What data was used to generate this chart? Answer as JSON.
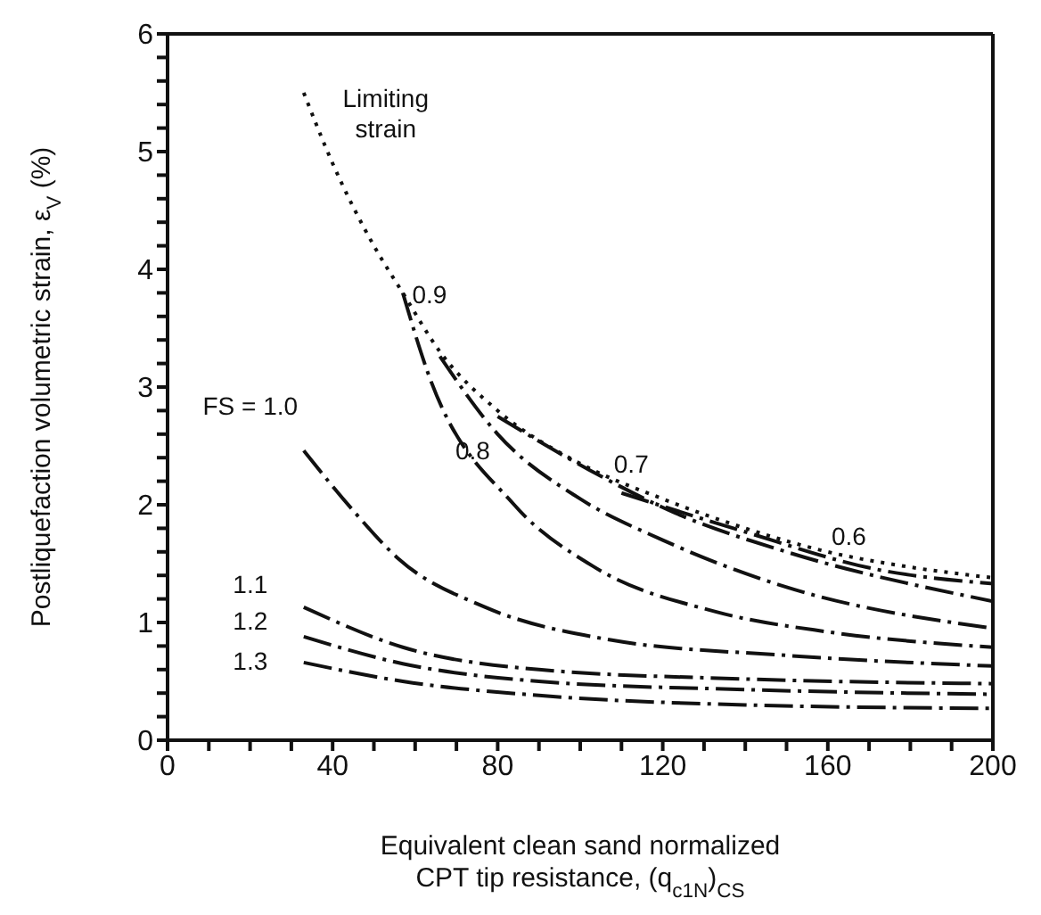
{
  "chart_data": {
    "type": "line",
    "xlabel": "Equivalent clean sand normalized\nCPT tip resistance,  (q$_{c1N}$)$_{CS}$",
    "ylabel": "Postliquefaction volumetric strain, ε$_{V}$ (%)",
    "xlim": [
      0,
      200
    ],
    "xticks": [
      0,
      {
        "value": 10,
        "label": null
      },
      {
        "value": 20,
        "label": null
      },
      {
        "value": 30,
        "label": null
      },
      40,
      {
        "value": 50,
        "label": null
      },
      {
        "value": 60,
        "label": null
      },
      {
        "value": 70,
        "label": null
      },
      80,
      {
        "value": 90,
        "label": null
      },
      {
        "value": 100,
        "label": null
      },
      {
        "value": 110,
        "label": null
      },
      120,
      {
        "value": 130,
        "label": null
      },
      {
        "value": 140,
        "label": null
      },
      {
        "value": 150,
        "label": null
      },
      160,
      {
        "value": 170,
        "label": null
      },
      {
        "value": 180,
        "label": null
      },
      {
        "value": 190,
        "label": null
      },
      200
    ],
    "ylim": [
      0,
      6
    ],
    "yticks": [
      0,
      {
        "value": 0.2,
        "label": null
      },
      {
        "value": 0.4,
        "label": null
      },
      {
        "value": 0.6,
        "label": null
      },
      {
        "value": 0.8,
        "label": null
      },
      1,
      {
        "value": 1.2,
        "label": null
      },
      {
        "value": 1.4,
        "label": null
      },
      {
        "value": 1.6,
        "label": null
      },
      {
        "value": 1.8,
        "label": null
      },
      2,
      {
        "value": 2.2,
        "label": null
      },
      {
        "value": 2.4,
        "label": null
      },
      {
        "value": 2.6,
        "label": null
      },
      {
        "value": 2.8,
        "label": null
      },
      3,
      {
        "value": 3.2,
        "label": null
      },
      {
        "value": 3.4,
        "label": null
      },
      {
        "value": 3.6,
        "label": null
      },
      {
        "value": 3.8,
        "label": null
      },
      4,
      {
        "value": 4.2,
        "label": null
      },
      {
        "value": 4.4,
        "label": null
      },
      {
        "value": 4.6,
        "label": null
      },
      {
        "value": 4.8,
        "label": null
      },
      5,
      {
        "value": 5.2,
        "label": null
      },
      {
        "value": 5.4,
        "label": null
      },
      {
        "value": 5.6,
        "label": null
      },
      {
        "value": 5.8,
        "label": null
      },
      6
    ],
    "grid": false,
    "legend": false,
    "marker": "none",
    "series": [
      {
        "name": "Limiting\nstrain",
        "color": "#111111",
        "line_style": "dotted",
        "x": [
          33,
          40,
          50,
          57,
          66,
          80,
          100,
          120,
          140,
          160,
          180,
          200
        ],
        "values": [
          5.5,
          4.9,
          4.2,
          3.8,
          3.3,
          2.8,
          2.35,
          2.05,
          1.8,
          1.6,
          1.47,
          1.38
        ]
      },
      {
        "name": "0.6",
        "color": "#111111",
        "line_style": "dashed",
        "x": [
          110,
          139,
          172,
          200
        ],
        "values": [
          2.1,
          1.78,
          1.45,
          1.33
        ]
      },
      {
        "name": "0.7",
        "color": "#111111",
        "line_style": "dashed",
        "x": [
          80,
          102,
          123,
          150,
          200
        ],
        "values": [
          2.75,
          2.3,
          1.93,
          1.6,
          1.18
        ]
      },
      {
        "name": "0.8",
        "color": "#111111",
        "line_style": "dashed",
        "x": [
          66,
          80,
          100,
          120,
          150,
          200
        ],
        "values": [
          3.26,
          2.6,
          2.05,
          1.7,
          1.3,
          0.95
        ]
      },
      {
        "name": "0.9",
        "color": "#111111",
        "line_style": "dashed",
        "x": [
          57,
          63,
          84,
          103,
          133,
          160,
          200
        ],
        "values": [
          3.8,
          3.13,
          2.0,
          1.48,
          1.09,
          0.92,
          0.79
        ]
      },
      {
        "name": "FS = 1.0",
        "color": "#111111",
        "line_style": "dashed",
        "x": [
          33,
          45,
          56,
          77,
          106,
          150,
          200
        ],
        "values": [
          2.46,
          1.95,
          1.54,
          1.13,
          0.86,
          0.72,
          0.63
        ]
      },
      {
        "name": "1.1",
        "color": "#111111",
        "line_style": "dashed",
        "x": [
          33,
          57,
          90,
          140,
          200
        ],
        "values": [
          1.13,
          0.79,
          0.6,
          0.52,
          0.48
        ]
      },
      {
        "name": "1.2",
        "color": "#111111",
        "line_style": "dashed",
        "x": [
          33,
          57,
          90,
          140,
          200
        ],
        "values": [
          0.88,
          0.65,
          0.5,
          0.43,
          0.39
        ]
      },
      {
        "name": "1.3",
        "color": "#111111",
        "line_style": "dashed",
        "x": [
          33,
          57,
          90,
          140,
          200
        ],
        "values": [
          0.66,
          0.5,
          0.38,
          0.3,
          0.27
        ]
      }
    ]
  }
}
